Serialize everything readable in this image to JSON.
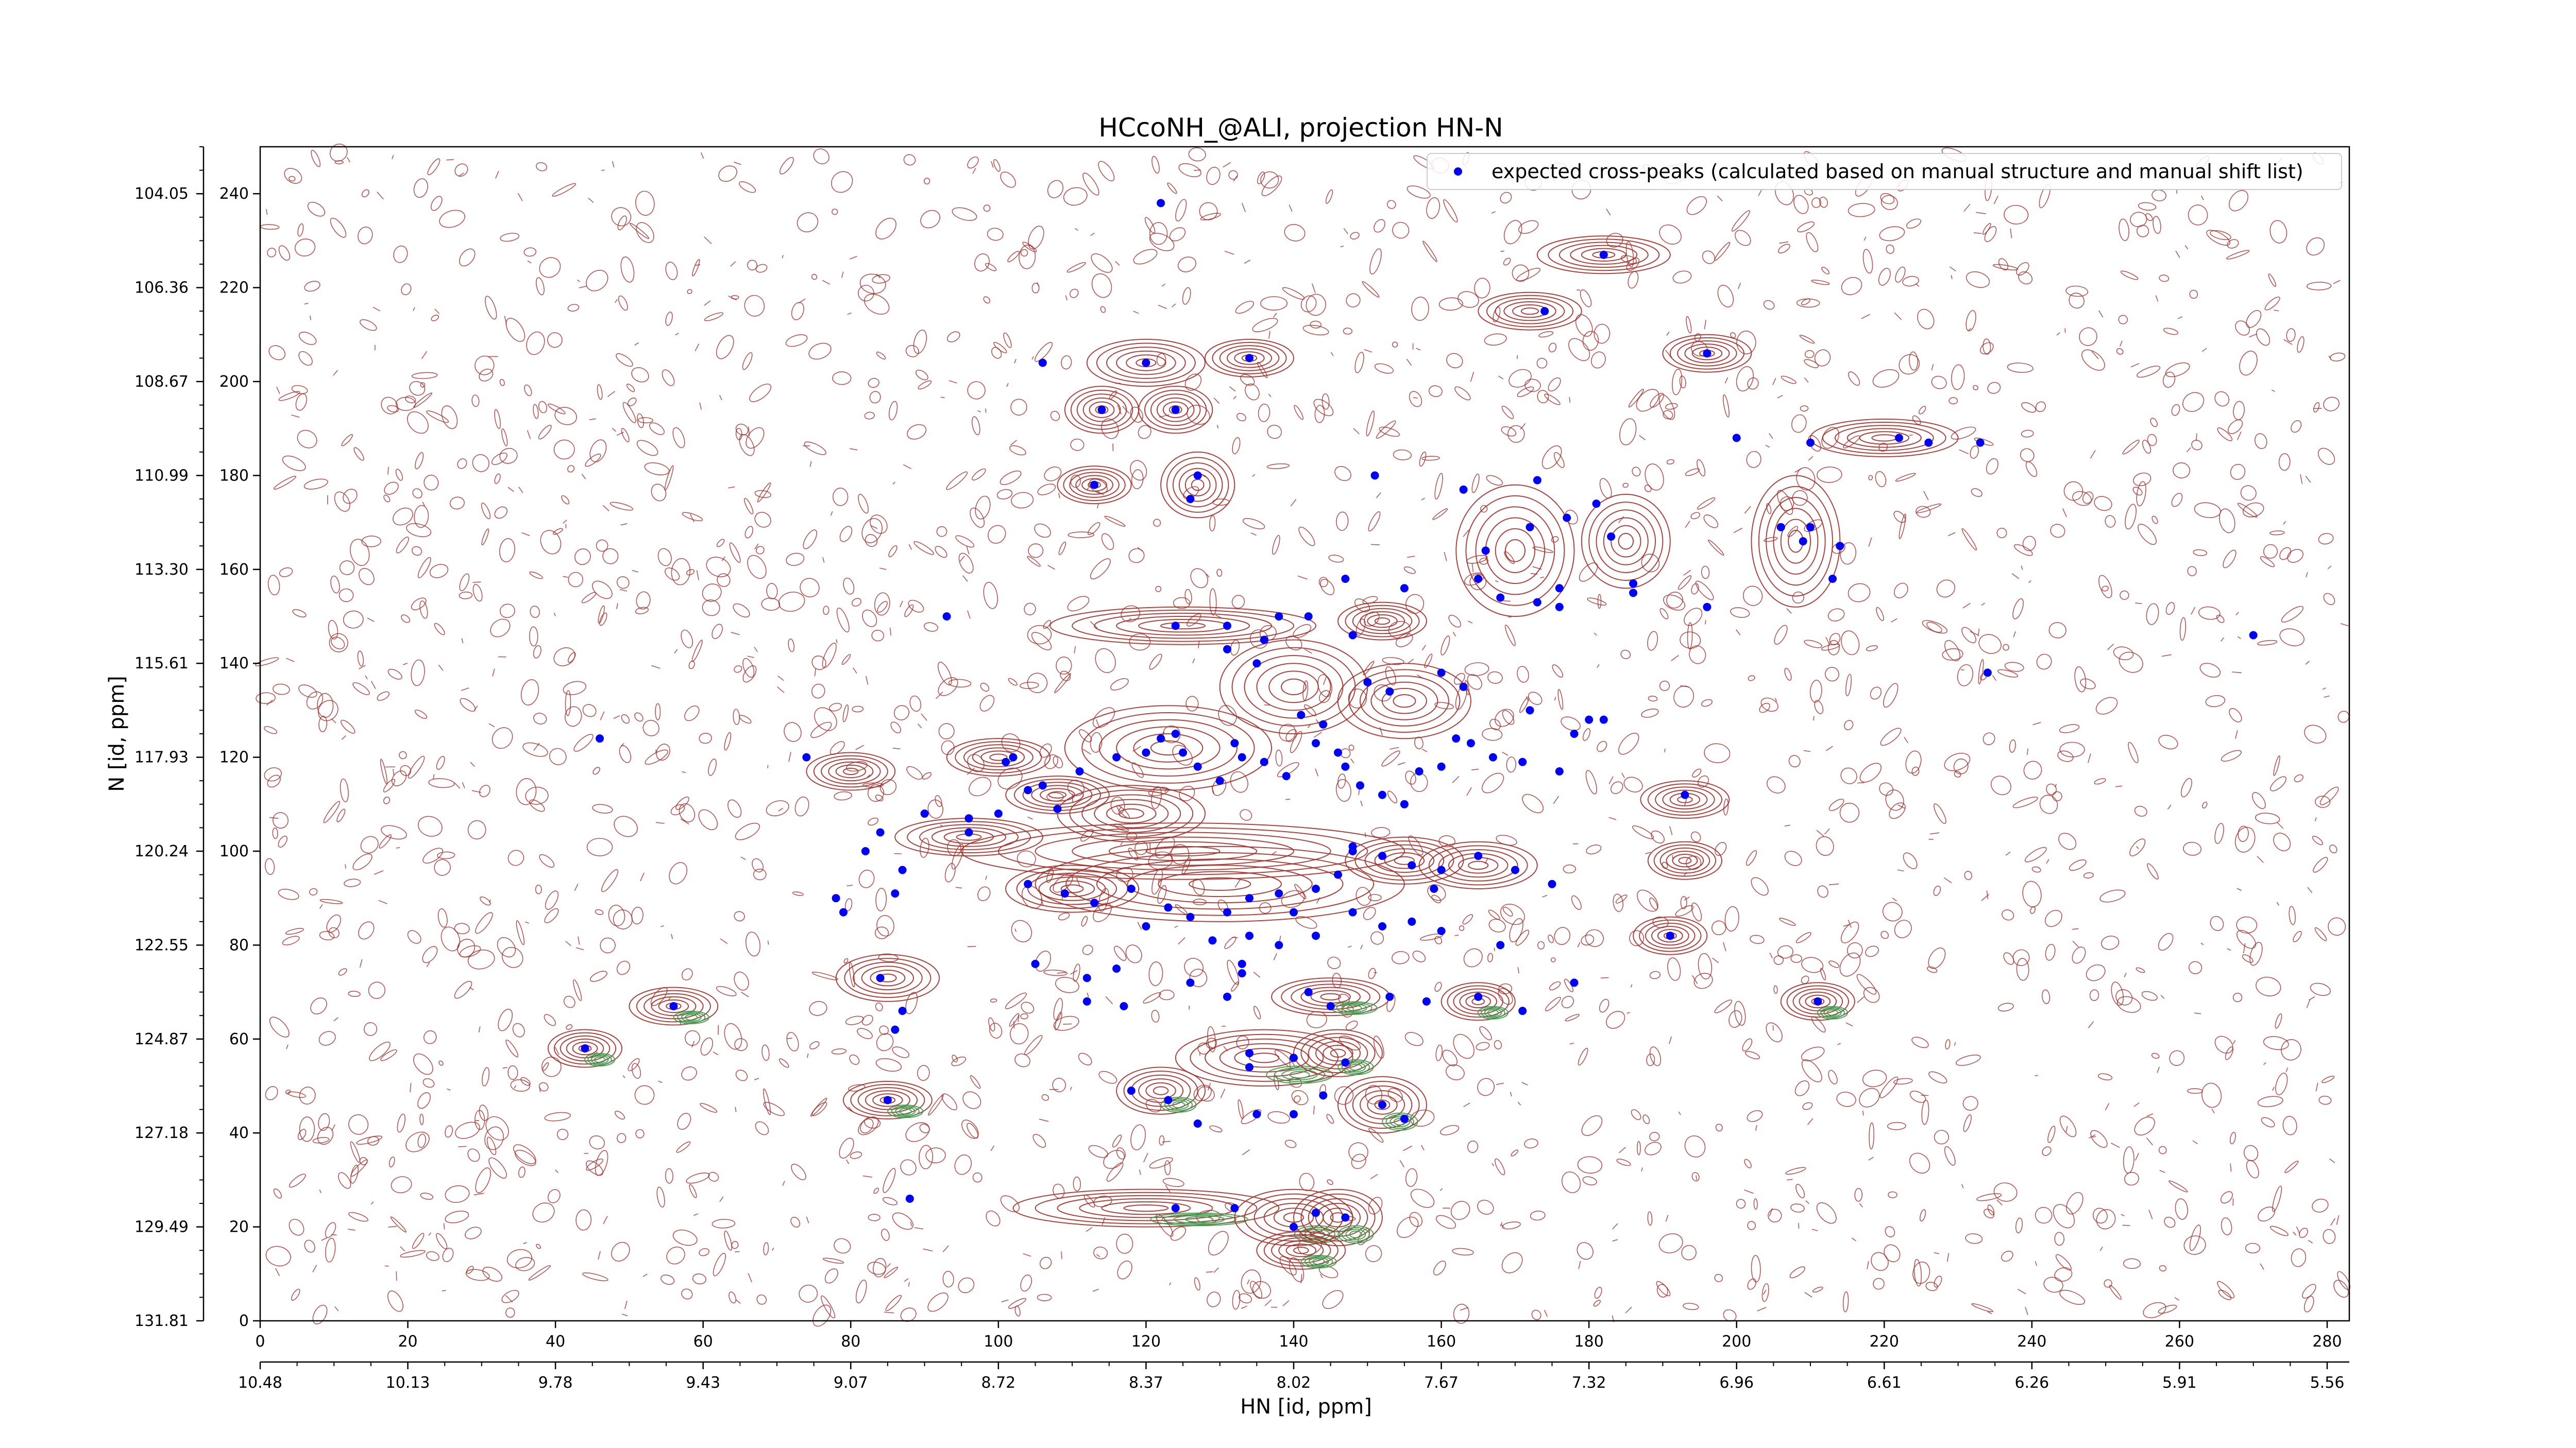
{
  "chart_data": {
    "type": "scatter",
    "title": "HCcoNH_@ALI, projection HN-N",
    "xlabel": "HN [id, ppm]",
    "ylabel": "N [id, ppm]",
    "xlim": [
      0,
      283
    ],
    "ylim": [
      0,
      250
    ],
    "grid": false,
    "legend_placement": "top-right",
    "x_ticks": [
      0,
      20,
      40,
      60,
      80,
      100,
      120,
      140,
      160,
      180,
      200,
      220,
      240,
      260,
      280
    ],
    "x_tick_labels": [
      "0",
      "20",
      "40",
      "60",
      "80",
      "100",
      "120",
      "140",
      "160",
      "180",
      "200",
      "220",
      "240",
      "260",
      "280"
    ],
    "y_ticks": [
      0,
      20,
      40,
      60,
      80,
      100,
      120,
      140,
      160,
      180,
      200,
      220,
      240
    ],
    "y_tick_labels": [
      "0",
      "20",
      "40",
      "60",
      "80",
      "100",
      "120",
      "140",
      "160",
      "180",
      "200",
      "220",
      "240"
    ],
    "secondary_x_axis": {
      "label": "HN [id, ppm]",
      "positions": [
        0,
        20,
        40,
        60,
        80,
        100,
        120,
        140,
        160,
        180,
        200,
        220,
        240,
        260,
        280
      ],
      "labels": [
        "10.48",
        "10.13",
        "9.78",
        "9.43",
        "9.07",
        "8.72",
        "8.37",
        "8.02",
        "7.67",
        "7.32",
        "6.96",
        "6.61",
        "6.26",
        "5.91",
        "5.56"
      ]
    },
    "secondary_y_axis": {
      "positions": [
        0,
        20,
        40,
        60,
        80,
        100,
        120,
        140,
        160,
        180,
        200,
        220,
        240
      ],
      "labels": [
        "131.81",
        "129.49",
        "127.18",
        "124.87",
        "122.55",
        "120.24",
        "117.93",
        "115.61",
        "113.30",
        "110.99",
        "108.67",
        "106.36",
        "104.05"
      ]
    },
    "series": [
      {
        "name": "expected cross-peaks (calculated based on manual structure and manual shift list)",
        "color": "#0000ff",
        "points": [
          [
            122,
            238
          ],
          [
            182,
            227
          ],
          [
            174,
            215
          ],
          [
            106,
            204
          ],
          [
            120,
            204
          ],
          [
            134,
            205
          ],
          [
            196,
            206
          ],
          [
            114,
            194
          ],
          [
            124,
            194
          ],
          [
            200,
            188
          ],
          [
            210,
            187
          ],
          [
            222,
            188
          ],
          [
            226,
            187
          ],
          [
            233,
            187
          ],
          [
            113,
            178
          ],
          [
            127,
            180
          ],
          [
            126,
            175
          ],
          [
            151,
            180
          ],
          [
            163,
            177
          ],
          [
            173,
            179
          ],
          [
            181,
            174
          ],
          [
            177,
            171
          ],
          [
            172,
            169
          ],
          [
            166,
            164
          ],
          [
            183,
            167
          ],
          [
            206,
            169
          ],
          [
            209,
            166
          ],
          [
            210,
            169
          ],
          [
            214,
            165
          ],
          [
            165,
            158
          ],
          [
            168,
            154
          ],
          [
            173,
            153
          ],
          [
            176,
            152
          ],
          [
            176,
            156
          ],
          [
            186,
            155
          ],
          [
            186,
            157
          ],
          [
            213,
            158
          ],
          [
            147,
            158
          ],
          [
            155,
            156
          ],
          [
            196,
            152
          ],
          [
            93,
            150
          ],
          [
            124,
            148
          ],
          [
            131,
            148
          ],
          [
            136,
            145
          ],
          [
            138,
            150
          ],
          [
            142,
            150
          ],
          [
            135,
            140
          ],
          [
            131,
            143
          ],
          [
            148,
            146
          ],
          [
            150,
            136
          ],
          [
            153,
            134
          ],
          [
            160,
            138
          ],
          [
            163,
            135
          ],
          [
            172,
            130
          ],
          [
            182,
            128
          ],
          [
            234,
            138
          ],
          [
            270,
            146
          ],
          [
            46,
            124
          ],
          [
            74,
            120
          ],
          [
            101,
            119
          ],
          [
            102,
            120
          ],
          [
            104,
            113
          ],
          [
            106,
            114
          ],
          [
            108,
            109
          ],
          [
            111,
            117
          ],
          [
            116,
            120
          ],
          [
            120,
            121
          ],
          [
            122,
            124
          ],
          [
            124,
            125
          ],
          [
            125,
            121
          ],
          [
            127,
            118
          ],
          [
            130,
            115
          ],
          [
            132,
            123
          ],
          [
            133,
            120
          ],
          [
            136,
            119
          ],
          [
            139,
            116
          ],
          [
            141,
            129
          ],
          [
            143,
            123
          ],
          [
            144,
            127
          ],
          [
            146,
            121
          ],
          [
            147,
            118
          ],
          [
            149,
            114
          ],
          [
            152,
            112
          ],
          [
            155,
            110
          ],
          [
            157,
            117
          ],
          [
            160,
            118
          ],
          [
            162,
            124
          ],
          [
            164,
            123
          ],
          [
            167,
            120
          ],
          [
            171,
            119
          ],
          [
            176,
            117
          ],
          [
            178,
            125
          ],
          [
            180,
            128
          ],
          [
            193,
            112
          ],
          [
            100,
            108
          ],
          [
            96,
            107
          ],
          [
            90,
            108
          ],
          [
            84,
            104
          ],
          [
            96,
            104
          ],
          [
            87,
            96
          ],
          [
            82,
            100
          ],
          [
            79,
            87
          ],
          [
            86,
            91
          ],
          [
            78,
            90
          ],
          [
            104,
            93
          ],
          [
            109,
            91
          ],
          [
            113,
            89
          ],
          [
            118,
            92
          ],
          [
            123,
            88
          ],
          [
            126,
            86
          ],
          [
            131,
            87
          ],
          [
            134,
            90
          ],
          [
            138,
            91
          ],
          [
            140,
            87
          ],
          [
            143,
            92
          ],
          [
            146,
            95
          ],
          [
            148,
            100
          ],
          [
            152,
            99
          ],
          [
            156,
            97
          ],
          [
            160,
            96
          ],
          [
            165,
            99
          ],
          [
            170,
            96
          ],
          [
            175,
            93
          ],
          [
            148,
            101
          ],
          [
            159,
            92
          ],
          [
            120,
            84
          ],
          [
            129,
            81
          ],
          [
            134,
            82
          ],
          [
            138,
            80
          ],
          [
            143,
            82
          ],
          [
            148,
            87
          ],
          [
            152,
            84
          ],
          [
            156,
            85
          ],
          [
            160,
            83
          ],
          [
            168,
            80
          ],
          [
            191,
            82
          ],
          [
            105,
            76
          ],
          [
            112,
            73
          ],
          [
            116,
            75
          ],
          [
            126,
            72
          ],
          [
            133,
            74
          ],
          [
            142,
            70
          ],
          [
            145,
            67
          ],
          [
            153,
            69
          ],
          [
            158,
            68
          ],
          [
            165,
            69
          ],
          [
            171,
            66
          ],
          [
            178,
            72
          ],
          [
            211,
            68
          ],
          [
            56,
            67
          ],
          [
            84,
            73
          ],
          [
            87,
            66
          ],
          [
            86,
            62
          ],
          [
            44,
            58
          ],
          [
            112,
            68
          ],
          [
            117,
            67
          ],
          [
            131,
            69
          ],
          [
            133,
            76
          ],
          [
            134,
            54
          ],
          [
            134,
            57
          ],
          [
            140,
            56
          ],
          [
            147,
            55
          ],
          [
            118,
            49
          ],
          [
            123,
            47
          ],
          [
            127,
            42
          ],
          [
            135,
            44
          ],
          [
            140,
            44
          ],
          [
            144,
            48
          ],
          [
            152,
            46
          ],
          [
            155,
            43
          ],
          [
            85,
            47
          ],
          [
            88,
            26
          ],
          [
            124,
            24
          ],
          [
            132,
            24
          ],
          [
            140,
            20
          ],
          [
            143,
            23
          ],
          [
            147,
            22
          ]
        ]
      }
    ],
    "background": {
      "kind": "contour",
      "positive_color": "#a0302a",
      "negative_color": "#3a9a4a",
      "peak_clusters": [
        [
          182,
          227,
          9,
          4
        ],
        [
          172,
          215,
          7,
          4
        ],
        [
          120,
          204,
          8,
          5
        ],
        [
          134,
          205,
          6,
          4
        ],
        [
          196,
          206,
          6,
          4
        ],
        [
          114,
          194,
          5,
          5
        ],
        [
          124,
          194,
          5,
          5
        ],
        [
          220,
          188,
          10,
          4
        ],
        [
          113,
          178,
          5,
          4
        ],
        [
          127,
          178,
          5,
          7
        ],
        [
          170,
          164,
          8,
          14
        ],
        [
          185,
          166,
          6,
          10
        ],
        [
          208,
          166,
          6,
          14
        ],
        [
          125,
          148,
          18,
          4
        ],
        [
          152,
          149,
          6,
          4
        ],
        [
          140,
          135,
          10,
          10
        ],
        [
          155,
          132,
          9,
          8
        ],
        [
          123,
          122,
          14,
          9
        ],
        [
          100,
          120,
          7,
          4
        ],
        [
          80,
          117,
          6,
          4
        ],
        [
          108,
          112,
          7,
          4
        ],
        [
          118,
          108,
          10,
          6
        ],
        [
          96,
          103,
          10,
          4
        ],
        [
          125,
          100,
          30,
          6
        ],
        [
          110,
          92,
          9,
          5
        ],
        [
          130,
          93,
          25,
          8
        ],
        [
          155,
          98,
          8,
          5
        ],
        [
          165,
          97,
          8,
          5
        ],
        [
          193,
          111,
          6,
          4
        ],
        [
          193,
          98,
          5,
          4
        ],
        [
          191,
          82,
          5,
          4
        ],
        [
          85,
          73,
          7,
          5
        ],
        [
          145,
          69,
          8,
          4
        ],
        [
          165,
          68,
          5,
          4
        ],
        [
          211,
          68,
          5,
          4
        ],
        [
          56,
          67,
          6,
          4
        ],
        [
          44,
          58,
          5,
          4
        ],
        [
          136,
          56,
          12,
          6
        ],
        [
          146,
          57,
          6,
          5
        ],
        [
          122,
          49,
          6,
          5
        ],
        [
          152,
          46,
          6,
          6
        ],
        [
          85,
          47,
          6,
          4
        ],
        [
          120,
          24,
          18,
          4
        ],
        [
          140,
          22,
          8,
          6
        ],
        [
          146,
          22,
          6,
          6
        ],
        [
          141,
          15,
          6,
          4
        ]
      ]
    }
  }
}
